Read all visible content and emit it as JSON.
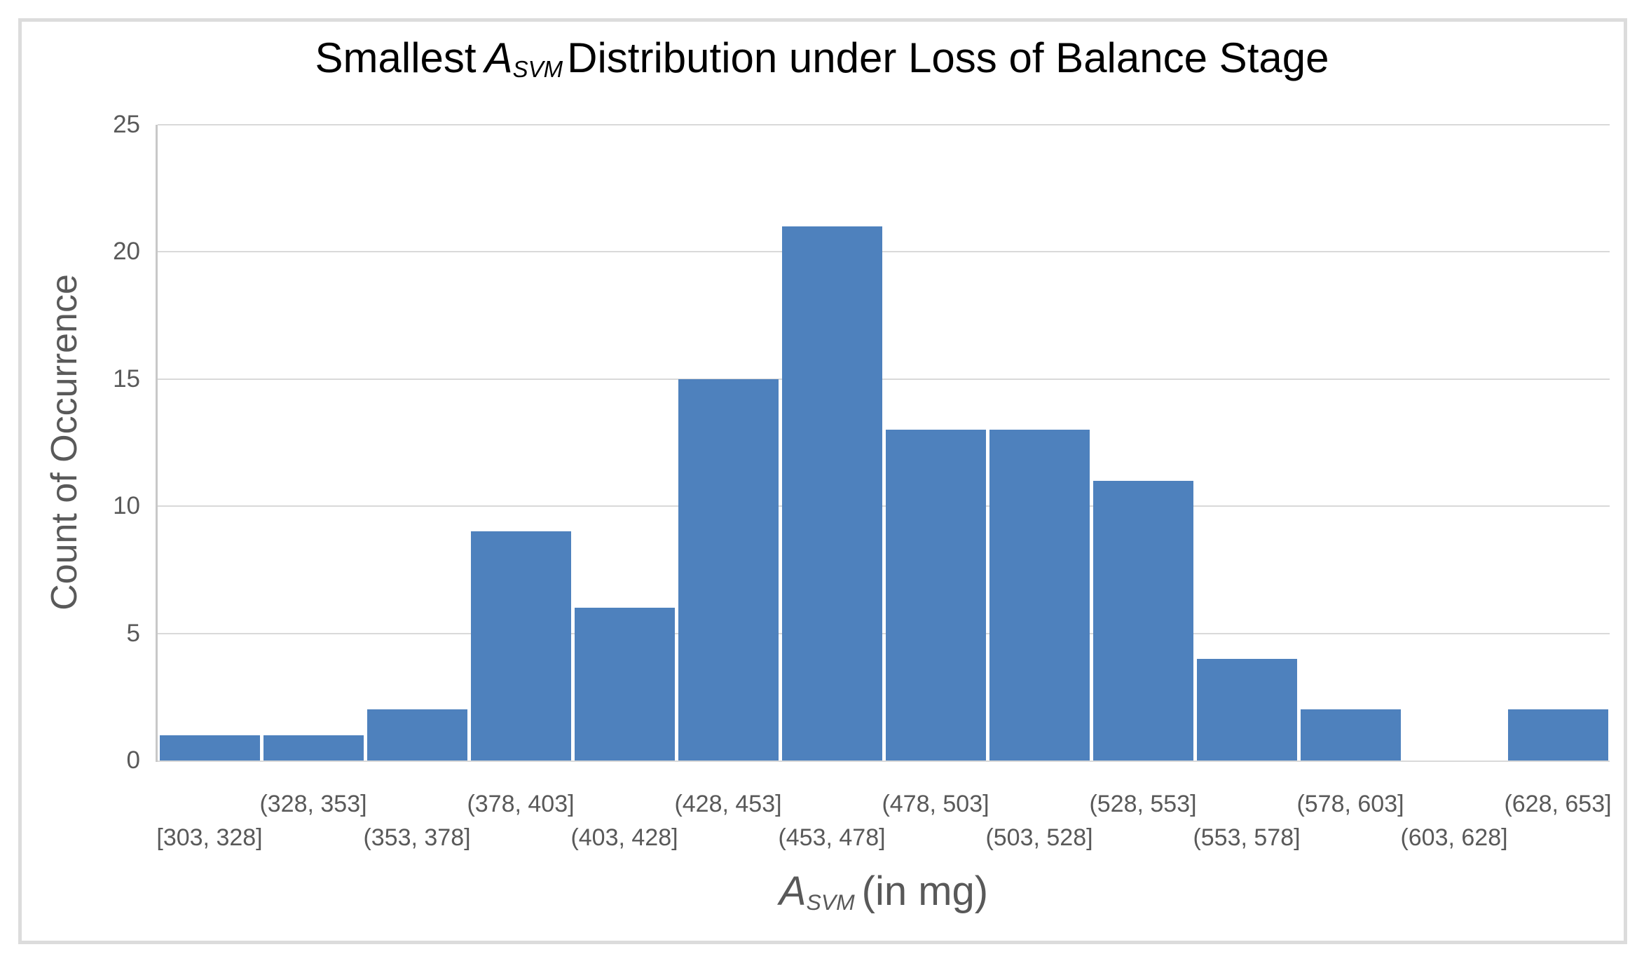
{
  "title": {
    "prefix": "Smallest",
    "var": "A",
    "sub": "SVM",
    "suffix": "Distribution under Loss of Balance Stage"
  },
  "axes": {
    "y_title": "Count of Occurrence",
    "x_title_var": "A",
    "x_title_sub": "SVM",
    "x_title_suffix": "(in mg)"
  },
  "chart_data": {
    "type": "bar",
    "title": "Smallest A_SVM Distribution under Loss of Balance Stage",
    "xlabel": "A_SVM (in mg)",
    "ylabel": "Count of Occurrence",
    "categories": [
      "[303, 328]",
      "(328, 353]",
      "(353, 378]",
      "(378, 403]",
      "(403, 428]",
      "(428, 453]",
      "(453, 478]",
      "(478, 503]",
      "(503, 528]",
      "(528, 553]",
      "(553, 578]",
      "(578, 603]",
      "(603, 628]",
      "(628, 653]"
    ],
    "values": [
      1,
      1,
      2,
      9,
      6,
      15,
      21,
      13,
      13,
      11,
      4,
      2,
      0,
      2
    ],
    "yticks": [
      0,
      5,
      10,
      15,
      20,
      25
    ],
    "ylim": [
      0,
      25
    ],
    "grid": true,
    "legend_position": "none",
    "x_label_layout": "staggered-two-rows",
    "bar_color": "#4E81BD"
  },
  "colors": {
    "bar": "#4E81BD",
    "gridline": "#d9d9d9",
    "axis_line": "#c8c8c8",
    "label_text": "#595959",
    "title_text": "#000000",
    "frame_border": "#dcdcdc"
  }
}
